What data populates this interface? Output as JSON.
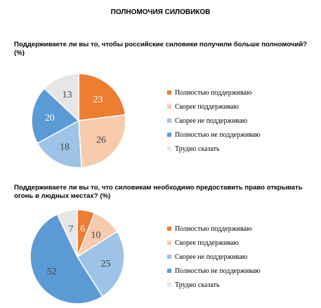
{
  "page": {
    "title": "ПОЛНОМОЧИЯ СИЛОВИКОВ"
  },
  "chart_data": [
    {
      "type": "pie",
      "title": "Поддерживаете ли вы то, чтобы российские силовики получили больше полномочий? (%)",
      "categories": [
        "Полностью поддерживаю",
        "Скорее поддерживаю",
        "Скорее не поддерживаю",
        "Полностью не поддерживаю",
        "Трудно сказать"
      ],
      "values": [
        23,
        26,
        18,
        20,
        13
      ],
      "colors": [
        "#ED7D31",
        "#F8CBAD",
        "#9DC3E6",
        "#5B9BD5",
        "#E7E6E6"
      ],
      "legend_position": "right"
    },
    {
      "type": "pie",
      "title": "Поддерживаете ли вы то, что силовикам необходимо предоставить право открывать огонь в людных местах? (%)",
      "categories": [
        "Полностью поддерживаю",
        "Скорее поддерживаю",
        "Скорее не поддерживаю",
        "Полностью не поддерживаю",
        "Трудно сказать"
      ],
      "values": [
        6,
        10,
        25,
        52,
        7
      ],
      "colors": [
        "#ED7D31",
        "#F8CBAD",
        "#9DC3E6",
        "#5B9BD5",
        "#E7E6E6"
      ],
      "legend_position": "right"
    }
  ]
}
